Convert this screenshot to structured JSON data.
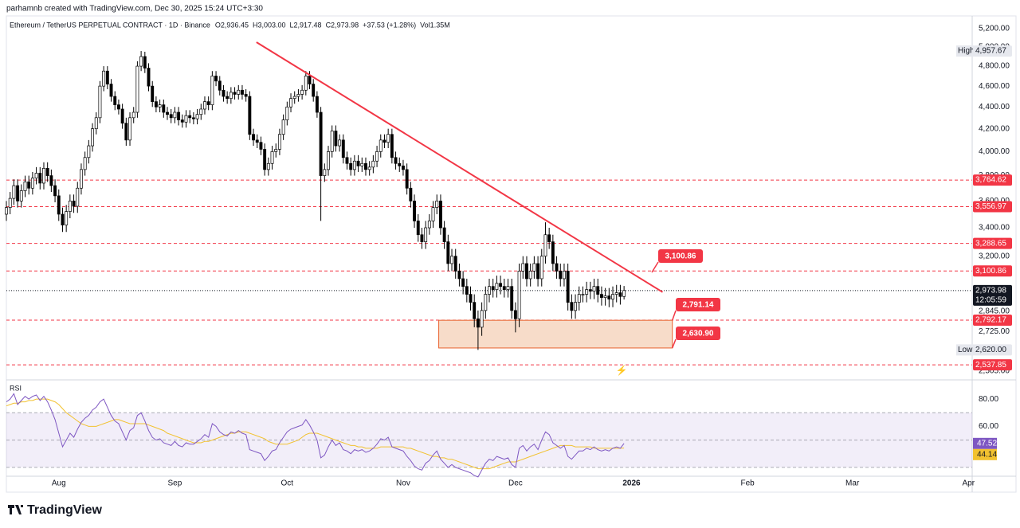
{
  "header": {
    "credit": "parhamnb created with TradingView.com, Dec 30, 2025 15:24 UTC+3:30",
    "symbol": "Ethereum / TetherUS PERPETUAL CONTRACT · 1D · Binance",
    "open": "O2,936.45",
    "high": "H3,003.00",
    "low": "L2,917.48",
    "close": "C2,973.98",
    "change": "+37.53 (+1.28%)",
    "volume": "Vol1.35M"
  },
  "footer": {
    "brand": "TradingView"
  },
  "chart_data": {
    "type": "candlestick",
    "log_scale": true,
    "up_color": "#ffffff",
    "down_color": "#000000",
    "outline_color": "#000000",
    "open": [
      3500,
      3550,
      3620,
      3720,
      3600,
      3680,
      3750,
      3700,
      3780,
      3820,
      3740,
      3860,
      3800,
      3720,
      3640,
      3500,
      3420,
      3520,
      3600,
      3560,
      3700,
      3850,
      3950,
      4050,
      4200,
      4300,
      4600,
      4750,
      4620,
      4500,
      4420,
      4380,
      4250,
      4100,
      4300,
      4350,
      4800,
      4900,
      4780,
      4600,
      4450,
      4400,
      4420,
      4350,
      4330,
      4300,
      4350,
      4280,
      4260,
      4320,
      4300,
      4290,
      4330,
      4380,
      4450,
      4420,
      4700,
      4650,
      4560,
      4500,
      4480,
      4540,
      4520,
      4560,
      4520,
      4500,
      4150,
      4100,
      4080,
      4020,
      3850,
      3900,
      4000,
      4020,
      4150,
      4280,
      4400,
      4480,
      4500,
      4520,
      4560,
      4700,
      4620,
      4500,
      4350,
      3800,
      3850,
      4000,
      4180,
      4050,
      4100,
      3950,
      3900,
      3850,
      3920,
      3880,
      3900,
      3850,
      3870,
      3920,
      4000,
      4100,
      4080,
      4150,
      3950,
      3900,
      3880,
      3850,
      3700,
      3600,
      3450,
      3350,
      3300,
      3400,
      3450,
      3550,
      3600,
      3400,
      3300,
      3150,
      3200,
      3100,
      3050,
      3000,
      2950,
      2900,
      2800,
      2750,
      2850,
      2950,
      3000,
      2980,
      3020,
      3000,
      2980,
      3000,
      2850,
      2800,
      3100,
      3150,
      3050,
      3100,
      3150,
      3050,
      3200,
      3350,
      3300,
      3150,
      3100,
      3050,
      3100,
      2900,
      2850,
      2900,
      2950,
      2950,
      2980,
      2970,
      3000,
      2950,
      2930,
      2940,
      2920,
      2950,
      2960,
      2936.45
    ],
    "high": [
      3600,
      3670,
      3770,
      3770,
      3730,
      3800,
      3800,
      3830,
      3870,
      3870,
      3910,
      3910,
      3850,
      3770,
      3690,
      3550,
      3570,
      3650,
      3650,
      3750,
      3900,
      4000,
      4100,
      4250,
      4350,
      4650,
      4800,
      4800,
      4670,
      4550,
      4470,
      4430,
      4300,
      4350,
      4400,
      4850,
      4957.67,
      4950,
      4830,
      4650,
      4500,
      4470,
      4470,
      4400,
      4380,
      4400,
      4400,
      4330,
      4370,
      4370,
      4350,
      4380,
      4430,
      4500,
      4500,
      4750,
      4750,
      4700,
      4610,
      4550,
      4590,
      4590,
      4610,
      4610,
      4570,
      4550,
      4200,
      4150,
      4130,
      4070,
      3950,
      4050,
      4070,
      4200,
      4330,
      4450,
      4530,
      4550,
      4570,
      4610,
      4750,
      4750,
      4670,
      4550,
      4400,
      3900,
      4050,
      4230,
      4230,
      4150,
      4150,
      4000,
      3950,
      3970,
      3970,
      3950,
      3950,
      3920,
      3970,
      4050,
      4150,
      4150,
      4200,
      4200,
      4000,
      3950,
      3930,
      3900,
      3750,
      3650,
      3500,
      3400,
      3450,
      3500,
      3600,
      3650,
      3650,
      3450,
      3350,
      3250,
      3250,
      3150,
      3100,
      3050,
      3000,
      2950,
      2850,
      2900,
      3000,
      3050,
      3050,
      3070,
      3070,
      3050,
      3050,
      3050,
      2900,
      3150,
      3200,
      3200,
      3150,
      3200,
      3200,
      3250,
      3440,
      3400,
      3350,
      3200,
      3150,
      3150,
      3150,
      2950,
      2950,
      3000,
      3000,
      3030,
      3030,
      3050,
      3050,
      3000,
      2990,
      2990,
      3000,
      3010,
      3010,
      3003
    ],
    "low": [
      3450,
      3500,
      3570,
      3550,
      3550,
      3630,
      3650,
      3650,
      3730,
      3690,
      3690,
      3750,
      3670,
      3590,
      3450,
      3370,
      3370,
      3470,
      3510,
      3510,
      3650,
      3800,
      3900,
      4000,
      4150,
      4250,
      4550,
      4570,
      4450,
      4370,
      4330,
      4200,
      4050,
      4050,
      4250,
      4300,
      4750,
      4730,
      4550,
      4400,
      4350,
      4350,
      4300,
      4280,
      4250,
      4250,
      4230,
      4210,
      4210,
      4250,
      4240,
      4240,
      4280,
      4330,
      4370,
      4370,
      4600,
      4510,
      4450,
      4430,
      4430,
      4470,
      4470,
      4470,
      4450,
      4100,
      4050,
      4030,
      3970,
      3800,
      3800,
      3850,
      3950,
      3970,
      4100,
      4230,
      4350,
      4430,
      4450,
      4470,
      4510,
      4570,
      4450,
      4300,
      3450,
      3750,
      3800,
      3950,
      4000,
      4000,
      3900,
      3850,
      3800,
      3800,
      3830,
      3830,
      3800,
      3800,
      3820,
      3870,
      3950,
      4030,
      4030,
      3900,
      3850,
      3830,
      3800,
      3650,
      3550,
      3400,
      3300,
      3250,
      3250,
      3350,
      3400,
      3500,
      3350,
      3250,
      3100,
      3100,
      3050,
      3000,
      2950,
      2900,
      2850,
      2750,
      2620,
      2700,
      2800,
      2900,
      2930,
      2930,
      2950,
      2930,
      2930,
      2800,
      2720,
      2750,
      3050,
      3000,
      3000,
      3050,
      3000,
      3000,
      3150,
      3250,
      3100,
      3050,
      3000,
      3000,
      2850,
      2800,
      2800,
      2850,
      2900,
      2900,
      2920,
      2920,
      2900,
      2880,
      2880,
      2870,
      2870,
      2900,
      2886,
      2917.48
    ],
    "close": [
      3550,
      3620,
      3720,
      3600,
      3680,
      3750,
      3700,
      3780,
      3820,
      3740,
      3860,
      3800,
      3720,
      3640,
      3500,
      3420,
      3520,
      3600,
      3560,
      3700,
      3850,
      3950,
      4050,
      4200,
      4300,
      4600,
      4750,
      4620,
      4500,
      4420,
      4380,
      4250,
      4100,
      4300,
      4350,
      4800,
      4900,
      4780,
      4600,
      4450,
      4400,
      4420,
      4350,
      4330,
      4300,
      4350,
      4280,
      4260,
      4320,
      4300,
      4290,
      4330,
      4380,
      4450,
      4420,
      4700,
      4650,
      4560,
      4500,
      4480,
      4540,
      4520,
      4560,
      4520,
      4500,
      4150,
      4100,
      4080,
      4020,
      3850,
      3900,
      4000,
      4020,
      4150,
      4280,
      4400,
      4480,
      4500,
      4520,
      4560,
      4700,
      4620,
      4500,
      4350,
      3800,
      3850,
      4000,
      4180,
      4050,
      4100,
      3950,
      3900,
      3850,
      3920,
      3880,
      3900,
      3850,
      3870,
      3920,
      4000,
      4100,
      4080,
      4150,
      3950,
      3900,
      3880,
      3850,
      3700,
      3600,
      3450,
      3350,
      3300,
      3400,
      3450,
      3550,
      3600,
      3400,
      3300,
      3150,
      3200,
      3100,
      3050,
      3000,
      2950,
      2900,
      2800,
      2750,
      2850,
      2950,
      3000,
      2980,
      3020,
      3000,
      2980,
      3000,
      2850,
      2800,
      3100,
      3150,
      3050,
      3100,
      3150,
      3050,
      3200,
      3350,
      3300,
      3150,
      3100,
      3050,
      3100,
      2900,
      2850,
      2900,
      2950,
      2950,
      2980,
      2970,
      3000,
      2950,
      2930,
      2940,
      2920,
      2950,
      2960,
      2936.45,
      2973.98
    ],
    "xlim": [
      0,
      258
    ],
    "xticks": [
      {
        "value": 14,
        "label": "Aug"
      },
      {
        "value": 45,
        "label": "Sep"
      },
      {
        "value": 75,
        "label": "Oct"
      },
      {
        "value": 106,
        "label": "Nov"
      },
      {
        "value": 136,
        "label": "Dec"
      },
      {
        "value": 167,
        "label": "2026"
      },
      {
        "value": 198,
        "label": "Feb"
      },
      {
        "value": 226,
        "label": "Mar"
      },
      {
        "value": 257,
        "label": "Apr"
      }
    ],
    "ylim": [
      2462,
      5325
    ],
    "yticks": [
      {
        "value": 5200,
        "label": "5,200.00"
      },
      {
        "value": 5000,
        "label": "5,000.00"
      },
      {
        "value": 4800,
        "label": "4,800.00"
      },
      {
        "value": 4600,
        "label": "4,600.00"
      },
      {
        "value": 4400,
        "label": "4,400.00"
      },
      {
        "value": 4200,
        "label": "4,200.00"
      },
      {
        "value": 4000,
        "label": "4,000.00"
      },
      {
        "value": 3800,
        "label": "3,800.00"
      },
      {
        "value": 3600,
        "label": "3,600.00"
      },
      {
        "value": 3400,
        "label": "3,400.00"
      },
      {
        "value": 3200,
        "label": "3,200.00"
      },
      {
        "value": 2845,
        "label": "2,845.00"
      },
      {
        "value": 2725,
        "label": "2,725.00"
      },
      {
        "value": 2505,
        "label": "2,505.00"
      }
    ],
    "levels": [
      {
        "value": 3764.62,
        "label": "3,764.62"
      },
      {
        "value": 3556.97,
        "label": "3,556.97"
      },
      {
        "value": 3288.65,
        "label": "3,288.65"
      },
      {
        "value": 3100.86,
        "label": "3,100.86"
      },
      {
        "value": 2792.17,
        "label": "2,792.17"
      },
      {
        "value": 2537.85,
        "label": "2,537.85"
      }
    ],
    "level_color": "#f23645",
    "last_price": {
      "value": 2973.98,
      "label": "2,973.98"
    },
    "countdown": "12:05:59",
    "session_high": {
      "text": "High",
      "value": 4957.67,
      "label": "4,957.67"
    },
    "session_low": {
      "text": "Low",
      "value": 2620,
      "label": "2,620.00"
    },
    "trendline": {
      "x": [
        66.8,
        175.3
      ],
      "y": [
        5052,
        2964
      ],
      "color": "#f23645"
    },
    "zone": {
      "x": [
        115.5,
        177.9
      ],
      "y": [
        2630.9,
        2791.14
      ],
      "color": "#f5d3bb",
      "border": "#e8602c"
    },
    "annotations": [
      {
        "value": 3100.86,
        "label": "3,100.86"
      },
      {
        "value": 2791.14,
        "label": "2,791.14"
      },
      {
        "value": 2630.9,
        "label": "2,630.90"
      }
    ],
    "rsi": {
      "name": "RSI",
      "color": "#7e57c2",
      "ma_color": "#f2c230",
      "values": [
        78,
        80,
        84,
        76,
        79,
        82,
        80,
        82,
        83,
        79,
        82,
        78,
        72,
        65,
        55,
        45,
        50,
        55,
        52,
        58,
        63,
        66,
        68,
        72,
        74,
        78,
        80,
        74,
        68,
        64,
        62,
        56,
        50,
        57,
        59,
        68,
        70,
        64,
        57,
        52,
        50,
        51,
        48,
        47,
        46,
        49,
        46,
        45,
        48,
        47,
        47,
        49,
        51,
        54,
        52,
        62,
        60,
        56,
        54,
        53,
        56,
        55,
        57,
        55,
        54,
        43,
        42,
        41,
        40,
        35,
        38,
        42,
        43,
        48,
        52,
        56,
        58,
        59,
        60,
        61,
        65,
        61,
        56,
        50,
        37,
        39,
        45,
        50,
        46,
        48,
        43,
        42,
        40,
        43,
        42,
        43,
        41,
        42,
        44,
        47,
        51,
        50,
        52,
        45,
        44,
        43,
        42,
        38,
        35,
        31,
        29,
        28,
        33,
        35,
        39,
        42,
        36,
        33,
        30,
        32,
        30,
        29,
        28,
        27,
        26,
        24,
        23,
        28,
        33,
        36,
        35,
        38,
        37,
        36,
        37,
        32,
        30,
        44,
        46,
        42,
        45,
        47,
        43,
        50,
        56,
        54,
        48,
        46,
        44,
        46,
        38,
        36,
        39,
        42,
        42,
        44,
        43,
        45,
        43,
        42,
        43,
        42,
        44,
        45,
        44,
        47.52
      ],
      "ma_values": [
        75,
        76,
        77,
        77,
        78,
        78,
        79,
        79,
        80,
        80,
        80,
        80,
        79,
        78,
        76,
        73,
        70,
        68,
        66,
        64,
        62,
        61,
        60,
        60,
        60,
        61,
        62,
        63,
        64,
        65,
        65,
        64,
        63,
        62,
        62,
        62,
        62,
        62,
        61,
        60,
        59,
        58,
        57,
        55,
        54,
        53,
        52,
        51,
        50,
        49,
        48,
        48,
        48,
        49,
        49,
        50,
        51,
        52,
        53,
        54,
        55,
        55,
        56,
        56,
        56,
        55,
        54,
        53,
        52,
        51,
        49,
        48,
        47,
        47,
        47,
        47,
        48,
        49,
        50,
        52,
        54,
        55,
        55,
        55,
        54,
        53,
        52,
        51,
        50,
        49,
        48,
        47,
        46,
        46,
        45,
        45,
        44,
        44,
        44,
        44,
        45,
        45,
        45,
        45,
        45,
        45,
        45,
        44,
        44,
        43,
        42,
        41,
        40,
        39,
        38,
        38,
        37,
        37,
        36,
        36,
        35,
        34,
        33,
        32,
        31,
        30,
        29,
        29,
        29,
        29,
        30,
        31,
        32,
        33,
        34,
        34,
        34,
        35,
        36,
        37,
        38,
        39,
        40,
        41,
        42,
        43,
        44,
        45,
        46,
        46,
        46,
        46,
        45,
        45,
        45,
        45,
        45,
        44,
        44,
        44,
        44,
        44,
        44,
        44,
        44,
        44.14
      ],
      "ylim": [
        23.5,
        93.5
      ],
      "yticks": [
        {
          "value": 80,
          "label": "80.00"
        },
        {
          "value": 60,
          "label": "60.00"
        }
      ],
      "bands": [
        70,
        50,
        30
      ],
      "last": {
        "value": 47.52,
        "label": "47.52"
      },
      "ma_last": {
        "value": 44.14,
        "label": "44.14"
      }
    }
  }
}
